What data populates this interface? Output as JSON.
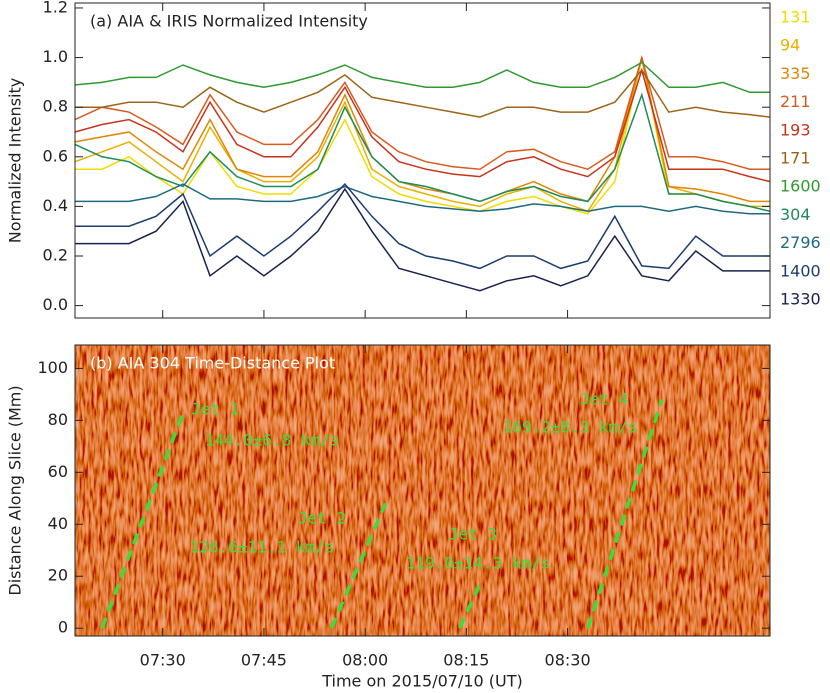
{
  "chart_data": [
    {
      "type": "line",
      "title": "(a) AIA & IRIS Normalized Intensity",
      "ylabel": "Normalized Intensity",
      "x": [
        "07:17",
        "07:21",
        "07:25",
        "07:29",
        "07:33",
        "07:37",
        "07:41",
        "07:45",
        "07:49",
        "07:53",
        "07:57",
        "08:01",
        "08:05",
        "08:09",
        "08:13",
        "08:17",
        "08:21",
        "08:25",
        "08:29",
        "08:33",
        "08:37",
        "08:41",
        "08:45",
        "08:49",
        "08:53",
        "08:57",
        "09:00"
      ],
      "xlim": [
        "07:17",
        "09:00"
      ],
      "ylim": [
        -0.05,
        1.22
      ],
      "yticks": [
        {
          "value": 0,
          "label": "0.0"
        },
        0.2,
        0.4,
        0.6,
        0.8,
        {
          "value": 1,
          "label": "1.0"
        },
        1.2
      ],
      "series": [
        {
          "name": "131",
          "color": "#f2dc00",
          "values": [
            0.55,
            0.55,
            0.6,
            0.52,
            0.45,
            0.62,
            0.48,
            0.45,
            0.45,
            0.55,
            0.75,
            0.52,
            0.45,
            0.42,
            0.4,
            0.38,
            0.42,
            0.44,
            0.4,
            0.37,
            0.5,
            1.0,
            0.45,
            0.45,
            0.42,
            0.4,
            0.38
          ]
        },
        {
          "name": "94",
          "color": "#eab000",
          "values": [
            0.58,
            0.62,
            0.66,
            0.58,
            0.5,
            0.72,
            0.55,
            0.5,
            0.5,
            0.6,
            0.82,
            0.55,
            0.48,
            0.45,
            0.42,
            0.4,
            0.45,
            0.48,
            0.42,
            0.38,
            0.55,
            1.0,
            0.48,
            0.45,
            0.42,
            0.4,
            0.4
          ]
        },
        {
          "name": "335",
          "color": "#e08600",
          "values": [
            0.66,
            0.68,
            0.7,
            0.62,
            0.55,
            0.75,
            0.55,
            0.52,
            0.52,
            0.62,
            0.85,
            0.6,
            0.5,
            0.47,
            0.45,
            0.42,
            0.46,
            0.5,
            0.45,
            0.42,
            0.6,
            1.0,
            0.48,
            0.47,
            0.45,
            0.42,
            0.42
          ]
        },
        {
          "name": "211",
          "color": "#da5a1e",
          "values": [
            0.75,
            0.8,
            0.78,
            0.72,
            0.65,
            0.85,
            0.7,
            0.65,
            0.65,
            0.75,
            0.9,
            0.7,
            0.62,
            0.58,
            0.56,
            0.55,
            0.62,
            0.63,
            0.58,
            0.55,
            0.62,
            1.0,
            0.6,
            0.6,
            0.58,
            0.55,
            0.55
          ]
        },
        {
          "name": "193",
          "color": "#c8321a",
          "values": [
            0.7,
            0.73,
            0.75,
            0.7,
            0.62,
            0.82,
            0.65,
            0.6,
            0.6,
            0.72,
            0.88,
            0.68,
            0.58,
            0.55,
            0.53,
            0.52,
            0.58,
            0.6,
            0.55,
            0.52,
            0.6,
            0.95,
            0.55,
            0.55,
            0.55,
            0.52,
            0.5
          ]
        },
        {
          "name": "171",
          "color": "#9c6414",
          "values": [
            0.8,
            0.8,
            0.82,
            0.82,
            0.8,
            0.88,
            0.82,
            0.78,
            0.82,
            0.86,
            0.93,
            0.84,
            0.82,
            0.8,
            0.78,
            0.76,
            0.8,
            0.8,
            0.78,
            0.78,
            0.82,
            0.95,
            0.78,
            0.8,
            0.78,
            0.77,
            0.76
          ]
        },
        {
          "name": "1600",
          "color": "#2e9a2e",
          "values": [
            0.89,
            0.9,
            0.92,
            0.92,
            0.97,
            0.93,
            0.9,
            0.88,
            0.9,
            0.93,
            0.97,
            0.92,
            0.9,
            0.88,
            0.88,
            0.9,
            0.95,
            0.9,
            0.88,
            0.88,
            0.92,
            0.98,
            0.88,
            0.88,
            0.9,
            0.86,
            0.86
          ]
        },
        {
          "name": "304",
          "color": "#1e8c5a",
          "values": [
            0.65,
            0.6,
            0.58,
            0.52,
            0.48,
            0.62,
            0.52,
            0.48,
            0.48,
            0.55,
            0.8,
            0.6,
            0.5,
            0.48,
            0.45,
            0.42,
            0.46,
            0.48,
            0.44,
            0.42,
            0.55,
            0.85,
            0.45,
            0.45,
            0.42,
            0.4,
            0.38
          ]
        },
        {
          "name": "2796",
          "color": "#1f6a80",
          "values": [
            0.42,
            0.42,
            0.42,
            0.44,
            0.49,
            0.43,
            0.43,
            0.42,
            0.42,
            0.44,
            0.48,
            0.44,
            0.42,
            0.4,
            0.39,
            0.38,
            0.39,
            0.41,
            0.4,
            0.38,
            0.4,
            0.4,
            0.38,
            0.4,
            0.38,
            0.37,
            0.37
          ]
        },
        {
          "name": "1400",
          "color": "#1c3c70",
          "values": [
            0.32,
            0.32,
            0.32,
            0.36,
            0.45,
            0.2,
            0.28,
            0.2,
            0.28,
            0.38,
            0.49,
            0.36,
            0.25,
            0.2,
            0.18,
            0.15,
            0.2,
            0.2,
            0.15,
            0.18,
            0.36,
            0.16,
            0.15,
            0.28,
            0.2,
            0.2,
            0.2
          ]
        },
        {
          "name": "1330",
          "color": "#18224e",
          "values": [
            0.25,
            0.25,
            0.25,
            0.3,
            0.42,
            0.12,
            0.2,
            0.12,
            0.2,
            0.3,
            0.47,
            0.3,
            0.15,
            0.12,
            0.09,
            0.06,
            0.1,
            0.12,
            0.08,
            0.12,
            0.28,
            0.12,
            0.1,
            0.22,
            0.14,
            0.14,
            0.14
          ]
        }
      ]
    },
    {
      "type": "line",
      "dashed": true,
      "title": "(b) AIA 304 Time-Distance Plot",
      "xlabel": "Time on 2015/07/10 (UT)",
      "ylabel": "Distance Along Slice (Mm)",
      "xlim": [
        "07:17",
        "09:00"
      ],
      "ylim": [
        -3,
        109
      ],
      "xticks": [
        "07:30",
        "07:45",
        "08:00",
        "08:15",
        "08:30"
      ],
      "yticks": [
        0,
        20,
        40,
        60,
        80,
        100
      ],
      "series": [
        {
          "name": "Jet 1",
          "color": "#3ddc3d",
          "x": [
            "07:21",
            "07:33"
          ],
          "values": [
            0,
            83
          ]
        },
        {
          "name": "Jet 2",
          "color": "#3ddc3d",
          "x": [
            "07:55",
            "08:03"
          ],
          "values": [
            0,
            48
          ]
        },
        {
          "name": "Jet 3",
          "color": "#3ddc3d",
          "x": [
            "08:14",
            "08:17"
          ],
          "values": [
            0,
            17
          ]
        },
        {
          "name": "Jet 4",
          "color": "#3ddc3d",
          "x": [
            "08:33",
            "08:44"
          ],
          "values": [
            0,
            88
          ]
        }
      ],
      "annotations": [
        "144.0±6.8 km/s",
        "126.6±11.1 km/s",
        "119.0±14.3 km/s",
        "169.2±8.3 km/s"
      ]
    }
  ]
}
